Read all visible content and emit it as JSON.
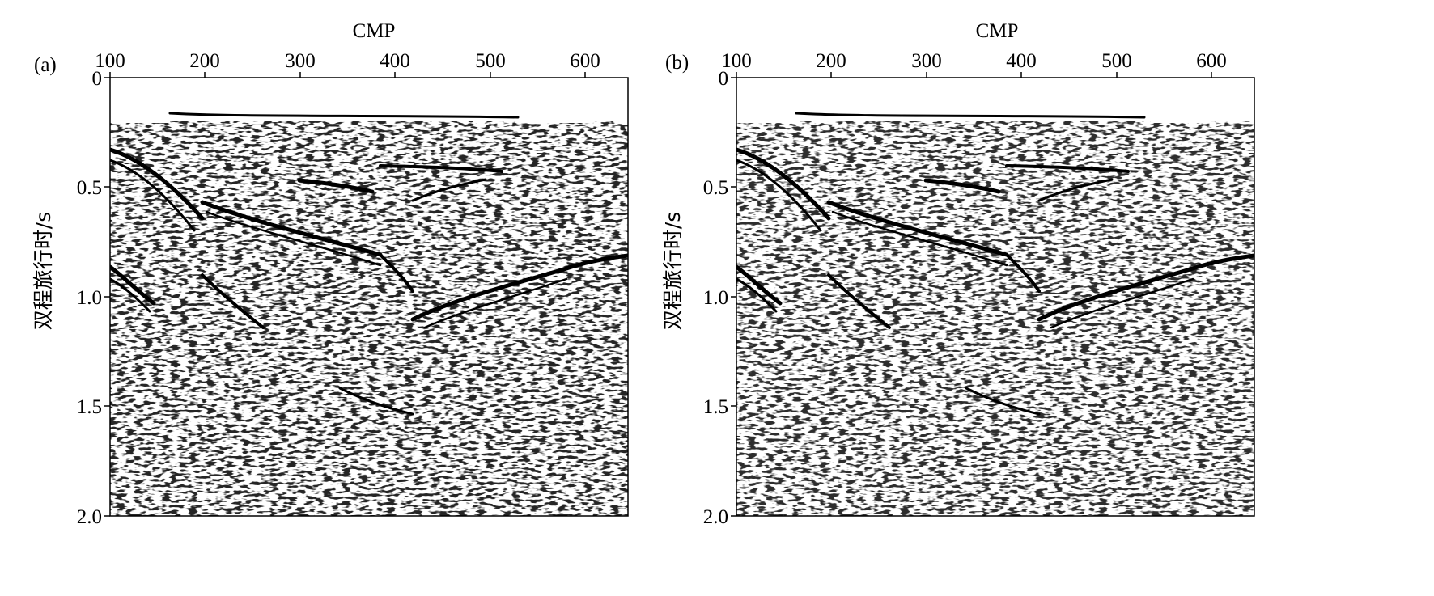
{
  "panels": [
    {
      "id": "a",
      "panel_label": "(a)",
      "x_axis_title": "CMP",
      "x_ticks": [
        100,
        200,
        300,
        400,
        500,
        600
      ],
      "y_axis_title": "双程旅行时/s",
      "y_ticks": [
        "0",
        "0.5",
        "1.0",
        "1.5",
        "2.0"
      ],
      "x_range": [
        100,
        645
      ],
      "y_range": [
        0,
        2.0
      ]
    },
    {
      "id": "b",
      "panel_label": "(b)",
      "x_axis_title": "CMP",
      "x_ticks": [
        100,
        200,
        300,
        400,
        500,
        600
      ],
      "y_axis_title": "双程旅行时/s",
      "y_ticks": [
        "0",
        "0.5",
        "1.0",
        "1.5",
        "2.0"
      ],
      "x_range": [
        100,
        645
      ],
      "y_range": [
        0,
        2.0
      ]
    }
  ],
  "colors": {
    "ink": "#000000",
    "background": "#ffffff"
  }
}
